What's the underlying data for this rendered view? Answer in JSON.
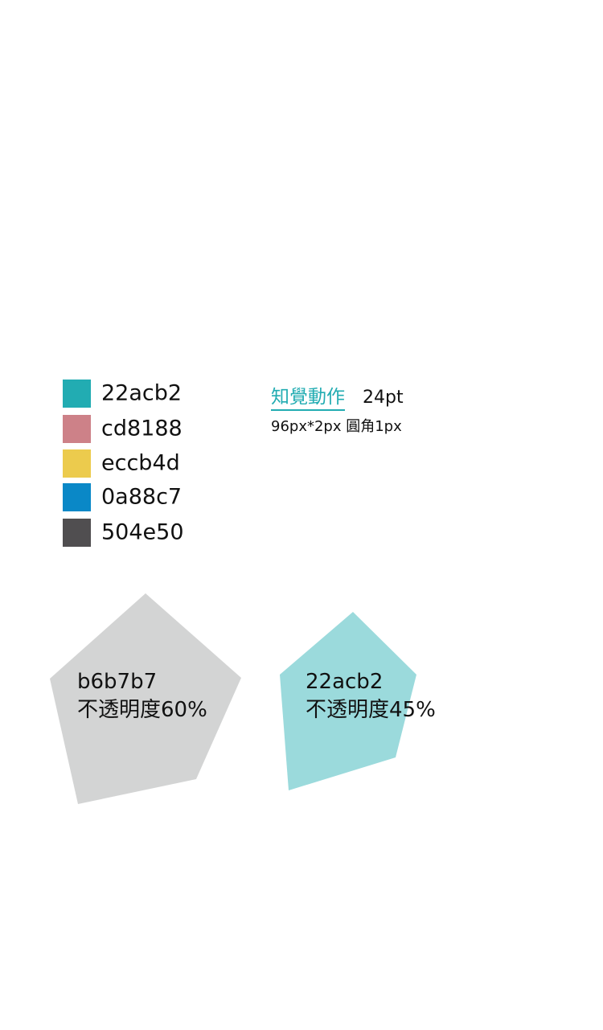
{
  "palette": [
    {
      "color": "#22acb2",
      "label": "22acb2"
    },
    {
      "color": "#cd8188",
      "label": "cd8188"
    },
    {
      "color": "#eccb4d",
      "label": "eccb4d"
    },
    {
      "color": "#0a88c7",
      "label": "0a88c7"
    },
    {
      "color": "#504e50",
      "label": "504e50"
    }
  ],
  "heading": {
    "text": "知覺動作",
    "size": "24pt",
    "color": "#22acb2"
  },
  "spec": "96px*2px 圓角1px",
  "shapes": [
    {
      "fill": "#b6b7b7",
      "opacity": 0.6,
      "line1": "b6b7b7",
      "line2": "不透明度60%"
    },
    {
      "fill": "#22acb2",
      "opacity": 0.45,
      "line1": "22acb2",
      "line2": "不透明度45%"
    }
  ]
}
